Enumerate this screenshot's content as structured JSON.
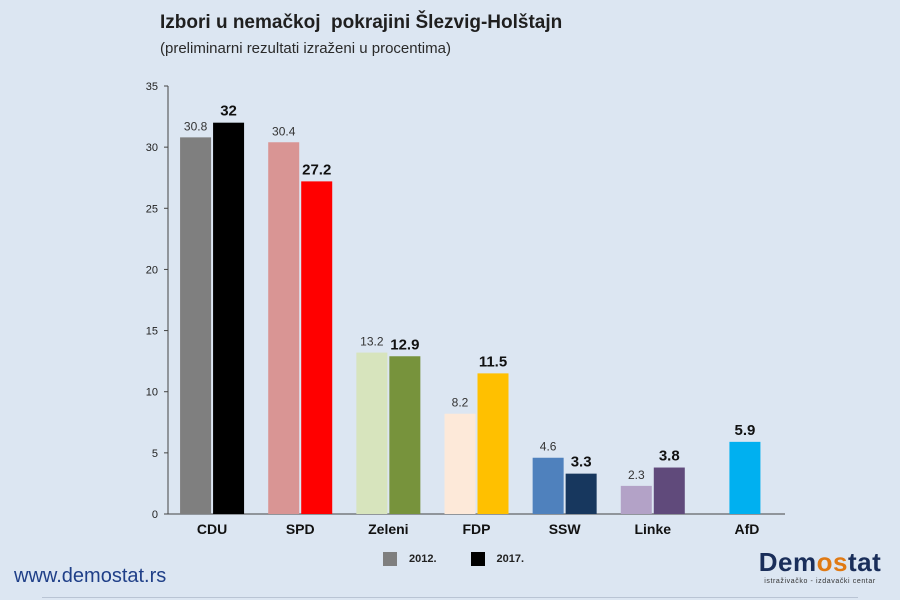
{
  "chart_data": {
    "type": "bar",
    "title": "Izbori u nemačkoj  pokrajini Šlezvig-Holštajn",
    "subtitle": "(preliminarni rezultati izraženi u procentima)",
    "categories": [
      "CDU",
      "SPD",
      "Zeleni",
      "FDP",
      "SSW",
      "Linke",
      "AfD"
    ],
    "series": [
      {
        "name": "2012.",
        "values": [
          30.8,
          30.4,
          13.2,
          8.2,
          4.6,
          2.3,
          null
        ],
        "labels": [
          "30.8",
          "30.4",
          "13.2",
          "8.2",
          "4.6",
          "2.3",
          ""
        ],
        "colors": [
          "#7f7f7f",
          "#d99594",
          "#d7e4bd",
          "#fde9d9",
          "#4f81bd",
          "#b3a2c7",
          "#00b0f0"
        ]
      },
      {
        "name": "2017.",
        "values": [
          32,
          27.2,
          12.9,
          11.5,
          3.3,
          3.8,
          5.9
        ],
        "labels": [
          "32",
          "27.2",
          "12.9",
          "11.5",
          "3.3",
          "3.8",
          "5.9"
        ],
        "colors": [
          "#000000",
          "#ff0000",
          "#77933c",
          "#ffc000",
          "#17375e",
          "#604a7b",
          "#00b0f0"
        ]
      }
    ],
    "yticks": [
      "0",
      "5",
      "10",
      "15",
      "20",
      "25",
      "30",
      "35"
    ],
    "ylim": [
      0,
      35
    ],
    "legend": [
      {
        "label": "2012.",
        "color": "#7f7f7f"
      },
      {
        "label": "2017.",
        "color": "#000000"
      }
    ],
    "legend_position": "bottom-center",
    "xlabel": "",
    "ylabel": ""
  },
  "footer": {
    "website": "www.demostat.rs",
    "logo_text": "Demostat",
    "logo_subtitle": "istraživačko - izdavački centar"
  }
}
